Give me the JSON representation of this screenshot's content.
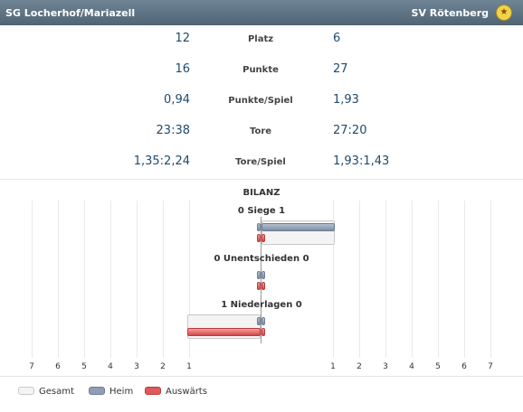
{
  "header": {
    "team_left": "SG Locherhof/Mariazell",
    "team_right": "SV Rötenberg",
    "logo_icon": "club-crest-icon"
  },
  "stats": [
    {
      "label": "Platz",
      "left": "12",
      "right": "6"
    },
    {
      "label": "Punkte",
      "left": "16",
      "right": "27"
    },
    {
      "label": "Punkte/Spiel",
      "left": "0,94",
      "right": "1,93"
    },
    {
      "label": "Tore",
      "left": "23:38",
      "right": "27:20"
    },
    {
      "label": "Tore/Spiel",
      "left": "1,35:2,24",
      "right": "1,93:1,43"
    }
  ],
  "bilanz": {
    "title": "BILANZ",
    "categories": [
      {
        "label": "0 Siege 1",
        "left": {
          "gesamt": 0,
          "heim": 0,
          "ausw": 0
        },
        "right": {
          "gesamt": 1,
          "heim": 1,
          "ausw": 0
        }
      },
      {
        "label": "0 Unentschieden 0",
        "left": {
          "gesamt": 0,
          "heim": 0,
          "ausw": 0
        },
        "right": {
          "gesamt": 0,
          "heim": 0,
          "ausw": 0
        }
      },
      {
        "label": "1 Niederlagen 0",
        "left": {
          "gesamt": 1,
          "heim": 0,
          "ausw": 1
        },
        "right": {
          "gesamt": 0,
          "heim": 0,
          "ausw": 0
        }
      }
    ],
    "ticks_left": [
      "7",
      "6",
      "5",
      "4",
      "3",
      "2",
      "1"
    ],
    "ticks_right": [
      "1",
      "2",
      "3",
      "4",
      "5",
      "6",
      "7"
    ]
  },
  "legend": [
    {
      "key": "gesamt",
      "label": "Gesamt",
      "color": "#f4f4f4"
    },
    {
      "key": "heim",
      "label": "Heim",
      "color": "#8e9eb3"
    },
    {
      "key": "ausw",
      "label": "Auswärts",
      "color": "#de5a5a"
    }
  ],
  "colors": {
    "header": "#5b7080",
    "value_text": "#1f4a6e",
    "heim": "#8e9eb3",
    "auswaerts": "#de5a5a"
  }
}
